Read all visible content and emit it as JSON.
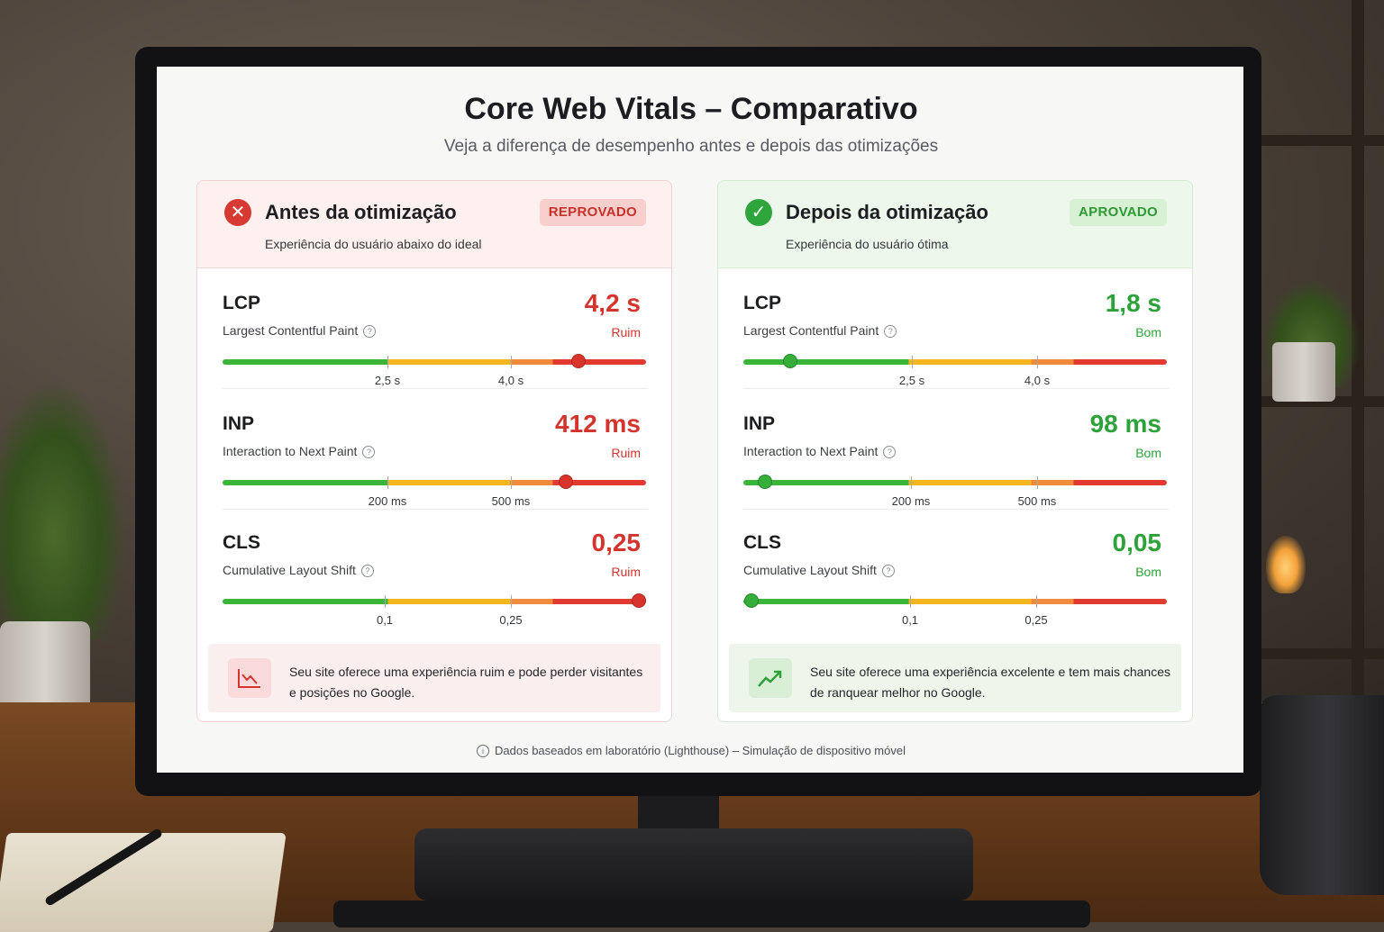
{
  "header": {
    "title": "Core Web Vitals – Comparativo",
    "subtitle": "Veja a diferença de desempenho antes e depois das otimizações"
  },
  "before": {
    "title": "Antes da otimização",
    "subtitle": "Experiência do usuário abaixo do ideal",
    "badge": "REPROVADO",
    "icon": "x-circle-icon",
    "color": "#d3352e",
    "metrics": [
      {
        "name": "LCP",
        "full": "Largest Contentful Paint",
        "value": "4,2 s",
        "status": "Ruim",
        "ticks": [
          "2,5 s",
          "4,0 s"
        ],
        "position": 0.84
      },
      {
        "name": "INP",
        "full": "Interaction to Next Paint",
        "value": "412 ms",
        "status": "Ruim",
        "ticks": [
          "200 ms",
          "500 ms"
        ],
        "position": 0.81
      },
      {
        "name": "CLS",
        "full": "Cumulative Layout Shift",
        "value": "0,25",
        "status": "Ruim",
        "ticks": [
          "0,1",
          "0,25"
        ],
        "position": 0.99
      }
    ],
    "footer": "Seu site oferece uma experiência ruim e pode perder visitantes e posições no Google.",
    "footer_icon": "trend-down-icon"
  },
  "after": {
    "title": "Depois da otimização",
    "subtitle": "Experiência do usuário ótima",
    "badge": "APROVADO",
    "icon": "check-circle-icon",
    "color": "#2ea23a",
    "metrics": [
      {
        "name": "LCP",
        "full": "Largest Contentful Paint",
        "value": "1,8 s",
        "status": "Bom",
        "ticks": [
          "2,5 s",
          "4,0 s"
        ],
        "position": 0.11
      },
      {
        "name": "INP",
        "full": "Interaction to Next Paint",
        "value": "98 ms",
        "status": "Bom",
        "ticks": [
          "200 ms",
          "500 ms"
        ],
        "position": 0.05
      },
      {
        "name": "CLS",
        "full": "Cumulative Layout Shift",
        "value": "0,05",
        "status": "Bom",
        "ticks": [
          "0,1",
          "0,25"
        ],
        "position": 0.02
      }
    ],
    "footer": "Seu site oferece uma experiência excelente e tem mais chances de ranquear melhor no Google.",
    "footer_icon": "trend-up-icon"
  },
  "note": "Dados baseados em laboratório (Lighthouse) – Simulação de dispositivo móvel"
}
